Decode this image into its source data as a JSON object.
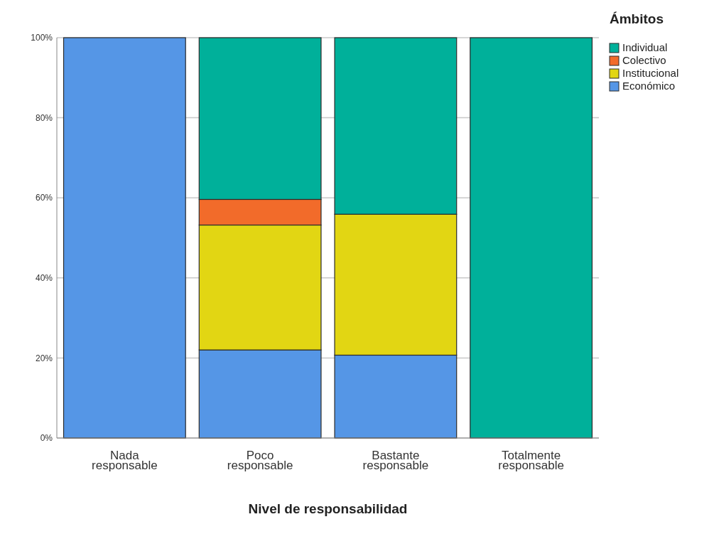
{
  "chart_data": {
    "type": "bar",
    "stacked": true,
    "xlabel": "Nivel de responsabilidad",
    "legend_title": "Ámbitos",
    "legend": "top right",
    "grid": "y",
    "categories": [
      "Nada responsable",
      "Poco responsable",
      "Bastante responsable",
      "Totalmente responsable"
    ],
    "ylim": [
      0,
      100
    ],
    "yticks": [
      {
        "value": 0,
        "label": "0%"
      },
      {
        "value": 20,
        "label": "20%"
      },
      {
        "value": 40,
        "label": "40%"
      },
      {
        "value": 60,
        "label": "60%"
      },
      {
        "value": 80,
        "label": "80%"
      },
      {
        "value": 100,
        "label": "100%"
      }
    ],
    "series": [
      {
        "name": "Económico",
        "color": "#5596e6",
        "values": [
          100,
          22,
          20.7,
          0
        ]
      },
      {
        "name": "Institucional",
        "color": "#e2d613",
        "values": [
          0,
          31.2,
          35.2,
          0
        ]
      },
      {
        "name": "Colectivo",
        "color": "#f26b2a",
        "values": [
          0,
          6.4,
          0,
          0
        ]
      },
      {
        "name": "Individual",
        "color": "#00b09a",
        "values": [
          0,
          40.4,
          44.1,
          100
        ]
      }
    ]
  }
}
